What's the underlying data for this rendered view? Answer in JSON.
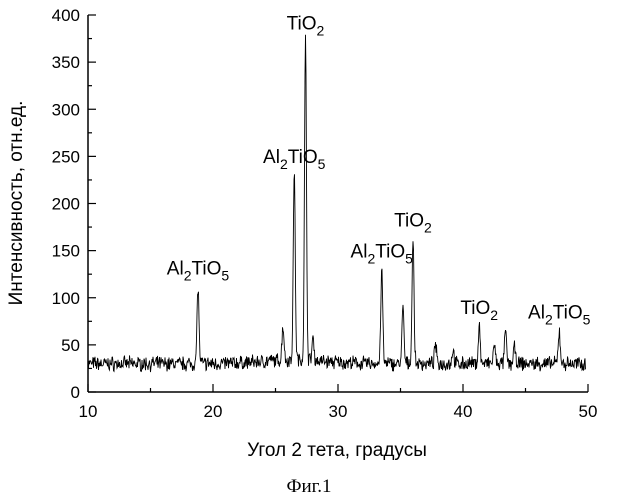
{
  "chart_data": {
    "type": "line",
    "xlabel": "Угол 2 тета, градусы",
    "ylabel": "Интенсивность, отн.ед.",
    "xlim": [
      10,
      50
    ],
    "ylim": [
      0,
      400
    ],
    "xticks": [
      10,
      20,
      30,
      40,
      50
    ],
    "yticks": [
      0,
      50,
      100,
      150,
      200,
      250,
      300,
      350,
      400
    ],
    "grid": false,
    "baseline": 30,
    "series": [
      {
        "values_note_x": "2theta",
        "peaks": [
          {
            "x": 18.8,
            "y": 112
          },
          {
            "x": 25.6,
            "y": 68
          },
          {
            "x": 26.5,
            "y": 230
          },
          {
            "x": 27.4,
            "y": 372
          },
          {
            "x": 28.0,
            "y": 55
          },
          {
            "x": 33.5,
            "y": 130
          },
          {
            "x": 35.2,
            "y": 90
          },
          {
            "x": 36.0,
            "y": 163
          },
          {
            "x": 37.8,
            "y": 50
          },
          {
            "x": 39.2,
            "y": 45
          },
          {
            "x": 41.3,
            "y": 70
          },
          {
            "x": 42.5,
            "y": 50
          },
          {
            "x": 43.4,
            "y": 65
          },
          {
            "x": 44.1,
            "y": 48
          },
          {
            "x": 47.7,
            "y": 65
          }
        ]
      }
    ],
    "annotations": [
      {
        "base": "Al",
        "sub1": "2",
        "mid": "TiO",
        "sub2": "5",
        "x": 18.8,
        "y": 112
      },
      {
        "base": "Al",
        "sub1": "2",
        "mid": "TiO",
        "sub2": "5",
        "x": 26.5,
        "y": 230
      },
      {
        "base": "",
        "sub1": "",
        "mid": "TiO",
        "sub2": "2",
        "x": 27.4,
        "y": 372
      },
      {
        "base": "Al",
        "sub1": "2",
        "mid": "TiO",
        "sub2": "5",
        "x": 33.5,
        "y": 130
      },
      {
        "base": "",
        "sub1": "",
        "mid": "TiO",
        "sub2": "2",
        "x": 36.0,
        "y": 163
      },
      {
        "base": "",
        "sub1": "",
        "mid": "TiO",
        "sub2": "2",
        "x": 41.3,
        "y": 70
      },
      {
        "base": "Al",
        "sub1": "2",
        "mid": "TiO",
        "sub2": "5",
        "x": 47.7,
        "y": 65
      }
    ]
  },
  "caption": "Фиг.1"
}
